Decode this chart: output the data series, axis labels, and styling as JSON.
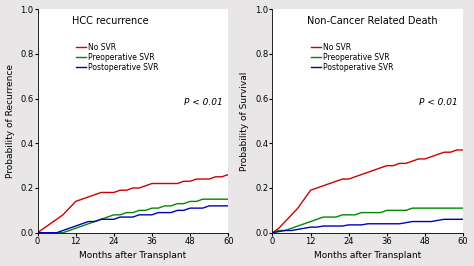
{
  "chart1": {
    "title": "HCC recurrence",
    "ylabel": "Probability of Recurrence",
    "xlabel": "Months after Transplant",
    "pvalue": "P < 0.01",
    "ylim": [
      0,
      1.0
    ],
    "xlim": [
      0,
      60
    ],
    "xticks": [
      0,
      12,
      24,
      36,
      48,
      60
    ],
    "yticks": [
      0.0,
      0.2,
      0.4,
      0.6,
      0.8,
      1.0
    ],
    "curves": {
      "no_svr": {
        "color": "#cc0000",
        "label": "No SVR",
        "x": [
          0,
          2,
          4,
          6,
          8,
          10,
          12,
          14,
          16,
          18,
          20,
          22,
          24,
          26,
          28,
          30,
          32,
          34,
          36,
          38,
          40,
          42,
          44,
          46,
          48,
          50,
          52,
          54,
          56,
          58,
          60
        ],
        "y": [
          0.0,
          0.02,
          0.04,
          0.06,
          0.08,
          0.11,
          0.14,
          0.15,
          0.16,
          0.17,
          0.18,
          0.18,
          0.18,
          0.19,
          0.19,
          0.2,
          0.2,
          0.21,
          0.22,
          0.22,
          0.22,
          0.22,
          0.22,
          0.23,
          0.23,
          0.24,
          0.24,
          0.24,
          0.25,
          0.25,
          0.26
        ]
      },
      "pre_svr": {
        "color": "#008800",
        "label": "Preoperative SVR",
        "x": [
          0,
          2,
          4,
          6,
          8,
          10,
          12,
          14,
          16,
          18,
          20,
          22,
          24,
          26,
          28,
          30,
          32,
          34,
          36,
          38,
          40,
          42,
          44,
          46,
          48,
          50,
          52,
          54,
          56,
          58,
          60
        ],
        "y": [
          0.0,
          0.0,
          0.0,
          0.0,
          0.0,
          0.01,
          0.02,
          0.03,
          0.04,
          0.05,
          0.06,
          0.07,
          0.08,
          0.08,
          0.09,
          0.09,
          0.1,
          0.1,
          0.11,
          0.11,
          0.12,
          0.12,
          0.13,
          0.13,
          0.14,
          0.14,
          0.15,
          0.15,
          0.15,
          0.15,
          0.15
        ]
      },
      "post_svr": {
        "color": "#0000bb",
        "label": "Postoperative SVR",
        "x": [
          0,
          2,
          4,
          6,
          8,
          10,
          12,
          14,
          16,
          18,
          20,
          22,
          24,
          26,
          28,
          30,
          32,
          34,
          36,
          38,
          40,
          42,
          44,
          46,
          48,
          50,
          52,
          54,
          56,
          58,
          60
        ],
        "y": [
          0.0,
          0.0,
          0.0,
          0.0,
          0.01,
          0.02,
          0.03,
          0.04,
          0.05,
          0.05,
          0.06,
          0.06,
          0.06,
          0.07,
          0.07,
          0.07,
          0.08,
          0.08,
          0.08,
          0.09,
          0.09,
          0.09,
          0.1,
          0.1,
          0.11,
          0.11,
          0.11,
          0.12,
          0.12,
          0.12,
          0.12
        ]
      }
    }
  },
  "chart2": {
    "title": "Non-Cancer Related Death",
    "ylabel": "Probability of Survival",
    "xlabel": "Months after Transplant",
    "pvalue": "P < 0.01",
    "ylim": [
      0,
      1.0
    ],
    "xlim": [
      0,
      60
    ],
    "xticks": [
      0,
      12,
      24,
      36,
      48,
      60
    ],
    "yticks": [
      0.0,
      0.2,
      0.4,
      0.6,
      0.8,
      1.0
    ],
    "curves": {
      "no_svr": {
        "color": "#cc0000",
        "label": "No SVR",
        "x": [
          0,
          2,
          4,
          6,
          8,
          10,
          12,
          14,
          16,
          18,
          20,
          22,
          24,
          26,
          28,
          30,
          32,
          34,
          36,
          38,
          40,
          42,
          44,
          46,
          48,
          50,
          52,
          54,
          56,
          58,
          60
        ],
        "y": [
          0.0,
          0.02,
          0.05,
          0.08,
          0.11,
          0.15,
          0.19,
          0.2,
          0.21,
          0.22,
          0.23,
          0.24,
          0.24,
          0.25,
          0.26,
          0.27,
          0.28,
          0.29,
          0.3,
          0.3,
          0.31,
          0.31,
          0.32,
          0.33,
          0.33,
          0.34,
          0.35,
          0.36,
          0.36,
          0.37,
          0.37
        ]
      },
      "pre_svr": {
        "color": "#008800",
        "label": "Preoperative SVR",
        "x": [
          0,
          2,
          4,
          6,
          8,
          10,
          12,
          14,
          16,
          18,
          20,
          22,
          24,
          26,
          28,
          30,
          32,
          34,
          36,
          38,
          40,
          42,
          44,
          46,
          48,
          50,
          52,
          54,
          56,
          58,
          60
        ],
        "y": [
          0.0,
          0.01,
          0.01,
          0.02,
          0.03,
          0.04,
          0.05,
          0.06,
          0.07,
          0.07,
          0.07,
          0.08,
          0.08,
          0.08,
          0.09,
          0.09,
          0.09,
          0.09,
          0.1,
          0.1,
          0.1,
          0.1,
          0.11,
          0.11,
          0.11,
          0.11,
          0.11,
          0.11,
          0.11,
          0.11,
          0.11
        ]
      },
      "post_svr": {
        "color": "#0000bb",
        "label": "Postoperative SVR",
        "x": [
          0,
          2,
          4,
          6,
          8,
          10,
          12,
          14,
          16,
          18,
          20,
          22,
          24,
          26,
          28,
          30,
          32,
          34,
          36,
          38,
          40,
          42,
          44,
          46,
          48,
          50,
          52,
          54,
          56,
          58,
          60
        ],
        "y": [
          0.0,
          0.005,
          0.01,
          0.01,
          0.015,
          0.02,
          0.025,
          0.025,
          0.03,
          0.03,
          0.03,
          0.03,
          0.035,
          0.035,
          0.035,
          0.04,
          0.04,
          0.04,
          0.04,
          0.04,
          0.04,
          0.045,
          0.05,
          0.05,
          0.05,
          0.05,
          0.055,
          0.06,
          0.06,
          0.06,
          0.06
        ]
      }
    }
  },
  "background_color": "#ffffff",
  "fig_background_color": "#e8e6e6",
  "legend_fontsize": 5.5,
  "title_fontsize": 7,
  "tick_fontsize": 6,
  "label_fontsize": 6.5,
  "pvalue_fontsize": 6.5,
  "linewidth": 1.0
}
